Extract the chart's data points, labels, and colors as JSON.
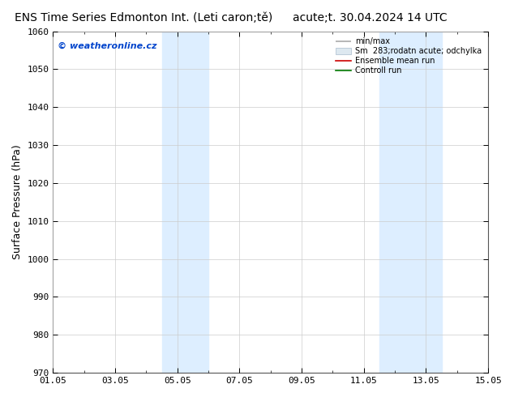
{
  "title_left": "ENS Time Series Edmonton Int. (Leti caron;tě)",
  "title_right": "acute;t. 30.04.2024 14 UTC",
  "ylabel": "Surface Pressure (hPa)",
  "ylim": [
    970,
    1060
  ],
  "yticks": [
    970,
    980,
    990,
    1000,
    1010,
    1020,
    1030,
    1040,
    1050,
    1060
  ],
  "xlim": [
    0,
    14
  ],
  "xtick_labels": [
    "01.05",
    "03.05",
    "05.05",
    "07.05",
    "09.05",
    "11.05",
    "13.05",
    "15.05"
  ],
  "xtick_positions": [
    0,
    2,
    4,
    6,
    8,
    10,
    12,
    14
  ],
  "shaded_regions": [
    {
      "start": 3.5,
      "end": 5.0,
      "color": "#ddeeff"
    },
    {
      "start": 10.5,
      "end": 12.5,
      "color": "#ddeeff"
    }
  ],
  "watermark": "© weatheronline.cz",
  "legend_items": [
    {
      "label": "min/max"
    },
    {
      "label": "Sm  283;rodatn acute; odchylka"
    },
    {
      "label": "Ensemble mean run"
    },
    {
      "label": "Controll run"
    }
  ],
  "legend_colors": [
    "#aaaaaa",
    "#ccddee",
    "#cc0000",
    "#007700"
  ],
  "background_color": "#ffffff",
  "plot_bg_color": "#ffffff",
  "grid_color": "#cccccc",
  "title_fontsize": 10,
  "tick_fontsize": 8,
  "ylabel_fontsize": 9,
  "watermark_color": "#0044cc",
  "figsize": [
    6.34,
    4.9
  ],
  "dpi": 100
}
